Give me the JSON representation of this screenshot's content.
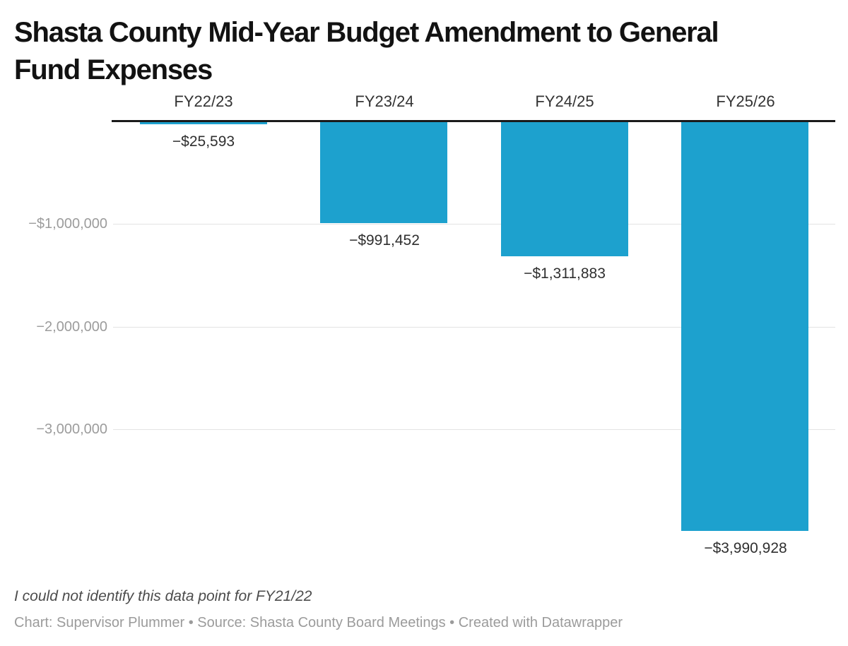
{
  "header": {
    "line1": "Shasta County Mid-Year Budget Amendment to General",
    "line2": "Fund Expenses"
  },
  "footer": {
    "note": "I could not identify this data point for FY21/22",
    "attribution": "Chart: Supervisor Plummer • Source: Shasta County Board Meetings • Created with Datawrapper"
  },
  "colors": {
    "bar": "#1DA1CE",
    "zero_line": "#1a1a1a",
    "gridline": "#e3e3e3",
    "tick_label": "#9c9c9c",
    "category_label": "#333333",
    "value_label": "#2f2f2f",
    "title": "#121212",
    "note": "#4c4c4c",
    "attribution": "#9b9b9b"
  },
  "chart_data": {
    "type": "bar",
    "title": "Shasta County Mid-Year Budget Amendment to General Fund Expenses",
    "categories": [
      "FY22/23",
      "FY23/24",
      "FY24/25",
      "FY25/26"
    ],
    "values": [
      -25593,
      -991452,
      -1311883,
      -3990928
    ],
    "value_labels": [
      "−$25,593",
      "−$991,452",
      "−$1,311,883",
      "−$3,990,928"
    ],
    "xlabel": "",
    "ylabel": "",
    "ylim": [
      -4100000,
      0
    ],
    "grid": true,
    "legend_position": "none",
    "y_ticks": [
      {
        "value": -1000000,
        "label": "−$1,000,000"
      },
      {
        "value": -2000000,
        "label": "−2,000,000"
      },
      {
        "value": -3000000,
        "label": "−3,000,000"
      }
    ],
    "note": "I could not identify this data point for FY21/22",
    "attribution": "Chart: Supervisor Plummer • Source: Shasta County Board Meetings • Created with Datawrapper"
  }
}
